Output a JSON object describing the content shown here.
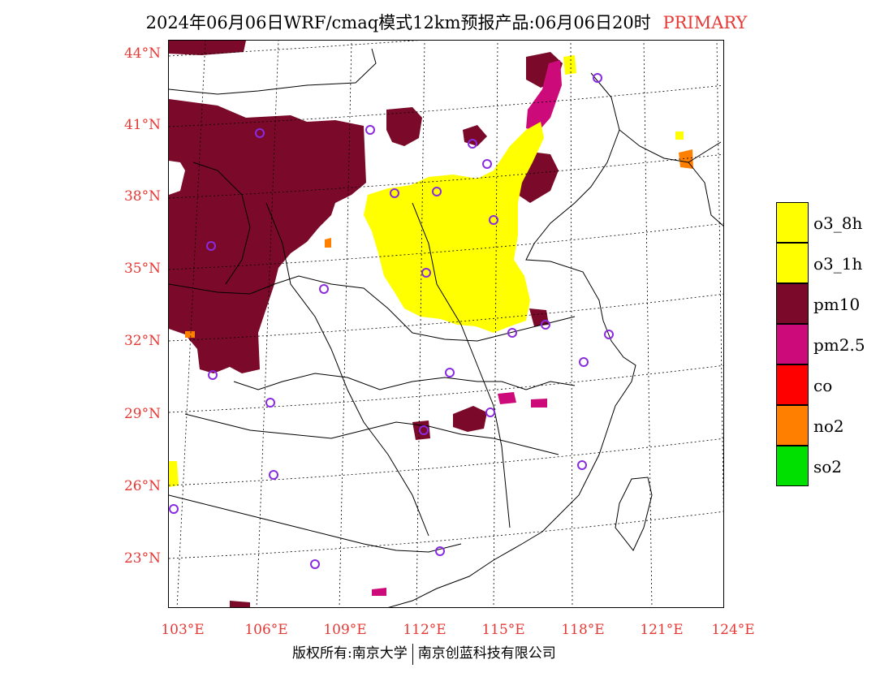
{
  "title": {
    "main": "2024年06月06日WRF/cmaq模式12km预报产品:06月06日20时",
    "tag": "PRIMARY"
  },
  "latitude_labels": [
    "44°N",
    "41°N",
    "38°N",
    "35°N",
    "32°N",
    "29°N",
    "26°N",
    "23°N"
  ],
  "longitude_labels": [
    "103°E",
    "106°E",
    "109°E",
    "112°E",
    "115°E",
    "118°E",
    "121°E",
    "124°E"
  ],
  "legend": [
    {
      "label": "o3_8h",
      "color": "#ffff00"
    },
    {
      "label": "o3_1h",
      "color": "#ffff00"
    },
    {
      "label": "pm10",
      "color": "#7b0a2a"
    },
    {
      "label": "pm2.5",
      "color": "#cc0a7a"
    },
    {
      "label": "co",
      "color": "#ff0000"
    },
    {
      "label": "no2",
      "color": "#ff7f00"
    },
    {
      "label": "so2",
      "color": "#00e000"
    }
  ],
  "colors": {
    "o3": "#ffff00",
    "pm10": "#7b0a2a",
    "pm25": "#cc0a7a",
    "no2": "#ff7f00",
    "station_marker": "#8a2be2",
    "axis_label": "#e53935"
  },
  "footer": {
    "left": "版权所有:南京大学",
    "right": "南京创蓝科技有限公司"
  }
}
